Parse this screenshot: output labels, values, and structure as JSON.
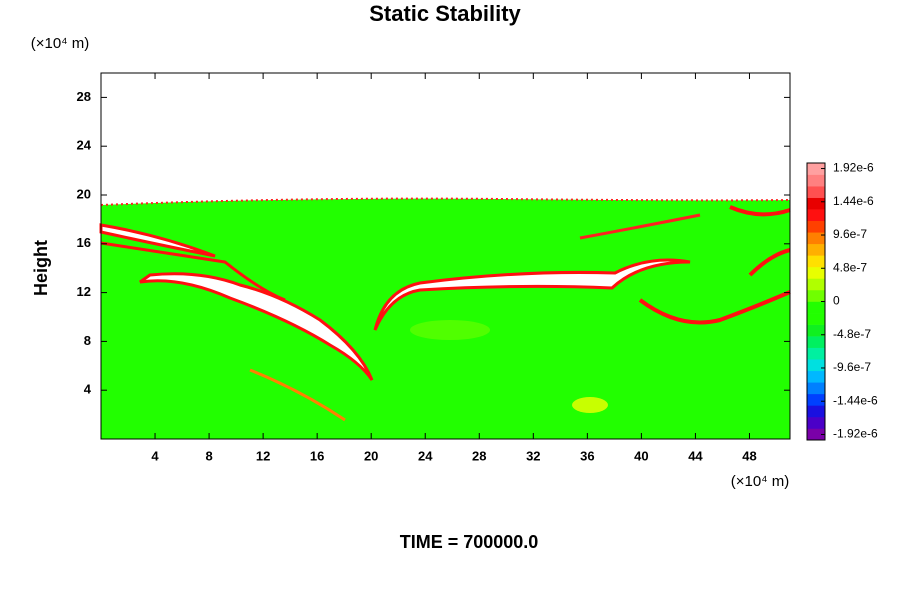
{
  "chart_data": {
    "type": "contour",
    "title": "Static Stability",
    "ylabel": "Height",
    "yunit": "(×10⁴ m)",
    "xunit": "(×10⁴ m)",
    "footer": "TIME = 700000.0",
    "xlim": [
      0,
      51
    ],
    "xticks": [
      4,
      8,
      12,
      16,
      20,
      24,
      28,
      32,
      36,
      40,
      44,
      48
    ],
    "ylim": [
      0,
      30
    ],
    "yticks": [
      4,
      8,
      12,
      16,
      20,
      24,
      28
    ],
    "colorbar": {
      "clim": [
        -2e-06,
        2e-06
      ],
      "colors": [
        "#7a00a8",
        "#4b00c8",
        "#1a10e0",
        "#0040ff",
        "#0080ff",
        "#00b8ff",
        "#00e0e0",
        "#00f0a0",
        "#00f060",
        "#10f020",
        "#22ff00",
        "#22ff00",
        "#70ff00",
        "#b0ff00",
        "#e8ff00",
        "#ffe000",
        "#ffb000",
        "#ff8000",
        "#ff4000",
        "#ff1010",
        "#e80000",
        "#ff5050",
        "#ff8080",
        "#ffa0a0"
      ],
      "ticks": [
        {
          "value": 1.92e-06,
          "label": "1.92e-6"
        },
        {
          "value": 1.44e-06,
          "label": "1.44e-6"
        },
        {
          "value": 9.6e-07,
          "label": "9.6e-7"
        },
        {
          "value": 4.8e-07,
          "label": "4.8e-7"
        },
        0,
        {
          "value": -4.8e-07,
          "label": "-4.8e-7"
        },
        {
          "value": -9.6e-07,
          "label": "-9.6e-7"
        },
        {
          "value": -1.44e-06,
          "label": "-1.44e-6"
        },
        {
          "value": -1.92e-06,
          "label": "-1.92e-6"
        }
      ]
    }
  }
}
